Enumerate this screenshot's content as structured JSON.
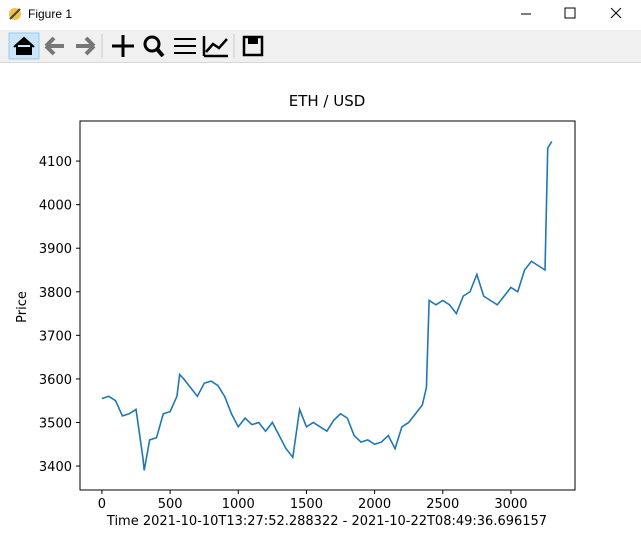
{
  "window": {
    "title": "Figure 1"
  },
  "chart_data": {
    "type": "line",
    "title": "ETH / USD",
    "xlabel": "Time 2021-10-10T13:27:52.288322 - 2021-10-22T08:49:36.696157",
    "ylabel": "Price",
    "x": [
      0,
      50,
      100,
      150,
      200,
      250,
      300,
      310,
      350,
      400,
      450,
      500,
      550,
      570,
      600,
      650,
      700,
      750,
      800,
      850,
      900,
      950,
      1000,
      1050,
      1100,
      1150,
      1200,
      1250,
      1300,
      1350,
      1400,
      1450,
      1500,
      1550,
      1600,
      1650,
      1700,
      1750,
      1800,
      1850,
      1900,
      1950,
      2000,
      2050,
      2100,
      2150,
      2200,
      2250,
      2300,
      2350,
      2380,
      2400,
      2450,
      2500,
      2550,
      2600,
      2650,
      2700,
      2750,
      2800,
      2850,
      2900,
      2950,
      3000,
      3050,
      3100,
      3150,
      3200,
      3250,
      3270,
      3300
    ],
    "series": [
      {
        "name": "ETH / USD",
        "color": "#1f77b4",
        "values": [
          3555,
          3560,
          3550,
          3515,
          3520,
          3530,
          3420,
          3390,
          3460,
          3465,
          3520,
          3525,
          3560,
          3610,
          3600,
          3580,
          3560,
          3590,
          3595,
          3585,
          3560,
          3520,
          3490,
          3510,
          3495,
          3500,
          3480,
          3500,
          3470,
          3440,
          3420,
          3530,
          3490,
          3500,
          3490,
          3480,
          3505,
          3520,
          3510,
          3470,
          3455,
          3460,
          3450,
          3455,
          3470,
          3440,
          3490,
          3500,
          3520,
          3540,
          3580,
          3780,
          3770,
          3780,
          3770,
          3750,
          3790,
          3800,
          3840,
          3790,
          3780,
          3770,
          3790,
          3810,
          3800,
          3850,
          3870,
          3860,
          3850,
          4130,
          4145
        ]
      }
    ],
    "xlim": [
      -161,
      3470
    ],
    "ylim": [
      3345,
      4192
    ],
    "xticks": [
      0,
      500,
      1000,
      1500,
      2000,
      2500,
      3000
    ],
    "yticks": [
      3400,
      3500,
      3600,
      3700,
      3800,
      3900,
      4000,
      4100
    ]
  }
}
